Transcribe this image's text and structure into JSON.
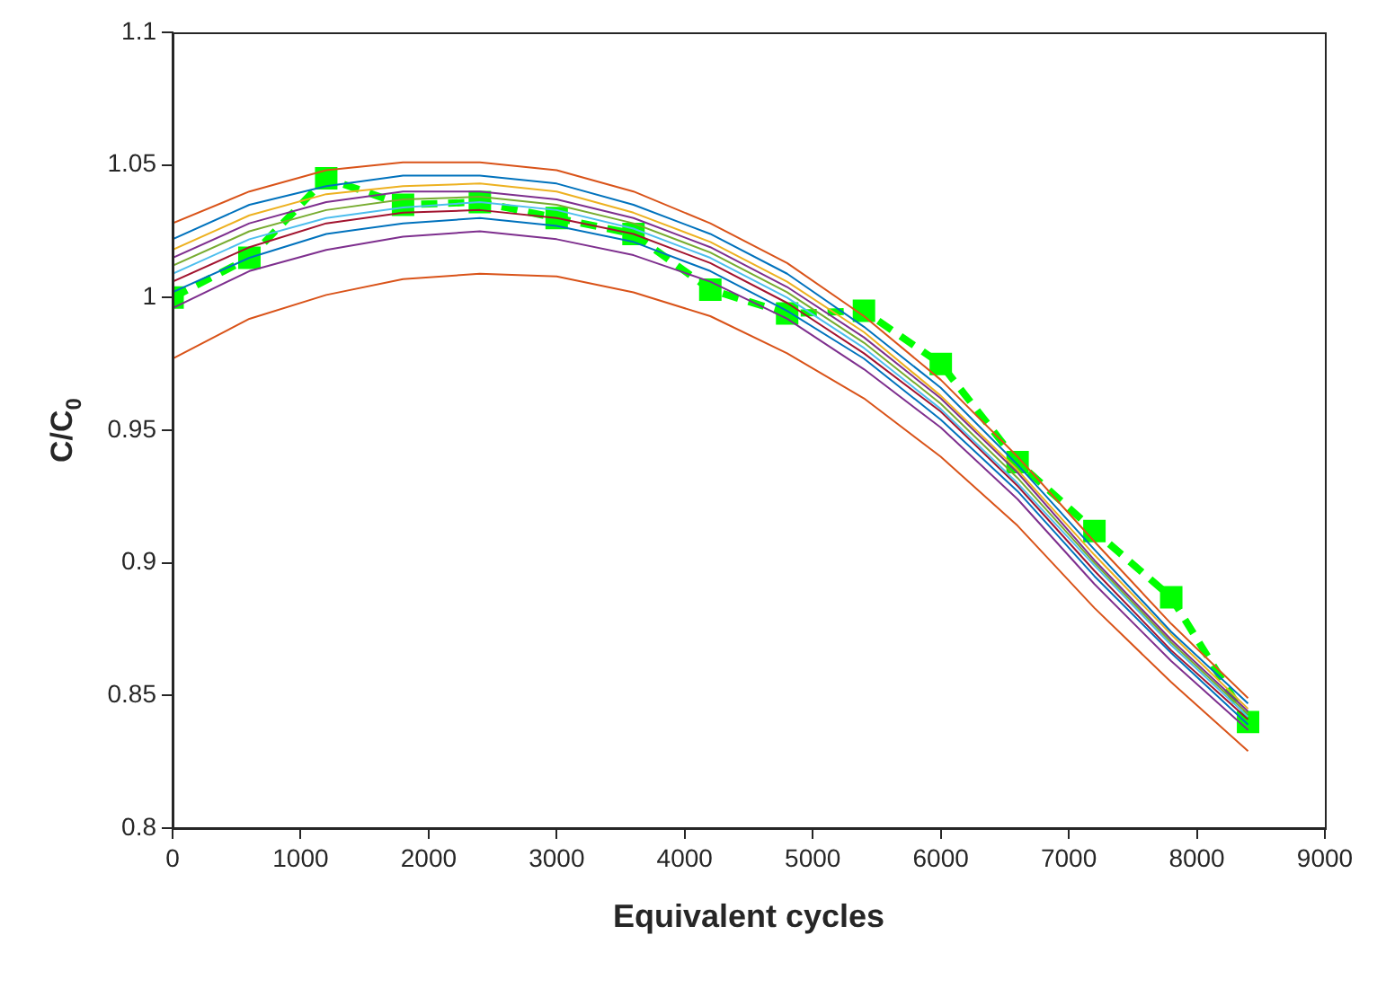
{
  "chart_data": {
    "type": "line",
    "xlabel": "Equivalent cycles",
    "ylabel": "C/C$_{0}$",
    "x": [
      0,
      600,
      1200,
      1800,
      2400,
      3000,
      3600,
      4200,
      4800,
      5400,
      6000,
      6600,
      7200,
      7800,
      8400
    ],
    "xlim": [
      0,
      9000
    ],
    "xticks": [
      0,
      1000,
      2000,
      3000,
      4000,
      5000,
      6000,
      7000,
      8000,
      9000
    ],
    "ylim": [
      0.8,
      1.1
    ],
    "yticks": [
      0.8,
      0.85,
      0.9,
      0.95,
      1,
      1.05,
      1.1
    ],
    "grid": false,
    "legend": false,
    "marker": "none",
    "line_style": "solid",
    "series": [
      {
        "color": "#d95319",
        "values": [
          1.028,
          1.04,
          1.048,
          1.051,
          1.051,
          1.048,
          1.04,
          1.028,
          1.013,
          0.993,
          0.969,
          0.94,
          0.908,
          0.877,
          0.849
        ]
      },
      {
        "color": "#0072bd",
        "values": [
          1.022,
          1.035,
          1.042,
          1.046,
          1.046,
          1.043,
          1.035,
          1.024,
          1.009,
          0.989,
          0.966,
          0.937,
          0.905,
          0.874,
          0.847
        ]
      },
      {
        "color": "#edb120",
        "values": [
          1.018,
          1.031,
          1.039,
          1.042,
          1.043,
          1.04,
          1.032,
          1.021,
          1.006,
          0.987,
          0.963,
          0.935,
          0.903,
          0.873,
          0.845
        ]
      },
      {
        "color": "#7e2f8e",
        "values": [
          1.015,
          1.028,
          1.036,
          1.04,
          1.04,
          1.037,
          1.03,
          1.019,
          1.004,
          0.985,
          0.962,
          0.934,
          0.901,
          0.871,
          0.844
        ]
      },
      {
        "color": "#77ac30",
        "values": [
          1.012,
          1.025,
          1.033,
          1.037,
          1.038,
          1.035,
          1.028,
          1.017,
          1.002,
          0.983,
          0.96,
          0.932,
          0.9,
          0.87,
          0.843
        ]
      },
      {
        "color": "#4dbeee",
        "values": [
          1.009,
          1.022,
          1.03,
          1.034,
          1.036,
          1.033,
          1.026,
          1.015,
          1.0,
          0.981,
          0.958,
          0.93,
          0.899,
          0.869,
          0.842
        ]
      },
      {
        "color": "#a2142f",
        "values": [
          1.006,
          1.019,
          1.028,
          1.032,
          1.033,
          1.03,
          1.024,
          1.013,
          0.998,
          0.979,
          0.957,
          0.929,
          0.897,
          0.867,
          0.841
        ]
      },
      {
        "color": "#0072bd",
        "values": [
          1.002,
          1.015,
          1.024,
          1.028,
          1.03,
          1.027,
          1.021,
          1.01,
          0.995,
          0.977,
          0.954,
          0.927,
          0.895,
          0.866,
          0.839
        ]
      },
      {
        "color": "#7e2f8e",
        "values": [
          0.996,
          1.01,
          1.018,
          1.023,
          1.025,
          1.022,
          1.016,
          1.006,
          0.992,
          0.973,
          0.951,
          0.924,
          0.892,
          0.863,
          0.837
        ]
      },
      {
        "color": "#d95319",
        "values": [
          0.977,
          0.992,
          1.001,
          1.007,
          1.009,
          1.008,
          1.002,
          0.993,
          0.979,
          0.962,
          0.94,
          0.914,
          0.883,
          0.855,
          0.829
        ]
      },
      {
        "color": "#00ff00",
        "marker": "square",
        "line_style": "dashed",
        "values": [
          1.0,
          1.015,
          1.045,
          1.035,
          1.036,
          1.03,
          1.024,
          1.003,
          0.994,
          0.995,
          0.975,
          0.938,
          0.912,
          0.887,
          0.84
        ]
      }
    ]
  }
}
